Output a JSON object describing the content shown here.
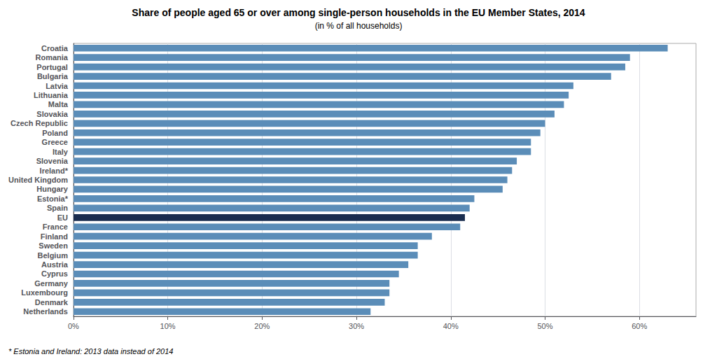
{
  "chart_data": {
    "type": "bar",
    "orientation": "horizontal",
    "title": "Share of people aged 65 or over among single-person households in the EU Member States, 2014",
    "subtitle": "(in % of all households)",
    "footnote": "* Estonia and Ireland: 2013 data instead of 2014",
    "categories": [
      "Croatia",
      "Romania",
      "Portugal",
      "Bulgaria",
      "Latvia",
      "Lithuania",
      "Malta",
      "Slovakia",
      "Czech Republic",
      "Poland",
      "Greece",
      "Italy",
      "Slovenia",
      "Ireland*",
      "United Kingdom",
      "Hungary",
      "Estonia*",
      "Spain",
      "EU",
      "France",
      "Finland",
      "Sweden",
      "Belgium",
      "Austria",
      "Cyprus",
      "Germany",
      "Luxembourg",
      "Denmark",
      "Netherlands"
    ],
    "values": [
      63.0,
      59.0,
      58.5,
      57.0,
      53.0,
      52.5,
      52.0,
      51.0,
      50.0,
      49.5,
      48.5,
      48.5,
      47.0,
      46.5,
      46.0,
      45.5,
      42.5,
      42.0,
      41.5,
      41.0,
      38.0,
      36.5,
      36.5,
      35.5,
      34.5,
      33.5,
      33.5,
      33.0,
      31.5
    ],
    "colors": [
      "#5B8DB8",
      "#5B8DB8",
      "#5B8DB8",
      "#5B8DB8",
      "#5B8DB8",
      "#5B8DB8",
      "#5B8DB8",
      "#5B8DB8",
      "#5B8DB8",
      "#5B8DB8",
      "#5B8DB8",
      "#5B8DB8",
      "#5B8DB8",
      "#5B8DB8",
      "#5B8DB8",
      "#5B8DB8",
      "#5B8DB8",
      "#5B8DB8",
      "#1A2D4F",
      "#5B8DB8",
      "#5B8DB8",
      "#5B8DB8",
      "#5B8DB8",
      "#5B8DB8",
      "#5B8DB8",
      "#5B8DB8",
      "#5B8DB8",
      "#5B8DB8",
      "#5B8DB8"
    ],
    "xlim": [
      0,
      66
    ],
    "xticks": [
      {
        "value": 0,
        "label": "0%"
      },
      {
        "value": 10,
        "label": "10%"
      },
      {
        "value": 20,
        "label": "20%"
      },
      {
        "value": 30,
        "label": "30%"
      },
      {
        "value": 40,
        "label": "40%"
      },
      {
        "value": 50,
        "label": "50%"
      },
      {
        "value": 60,
        "label": "60%"
      }
    ],
    "grid": true
  }
}
